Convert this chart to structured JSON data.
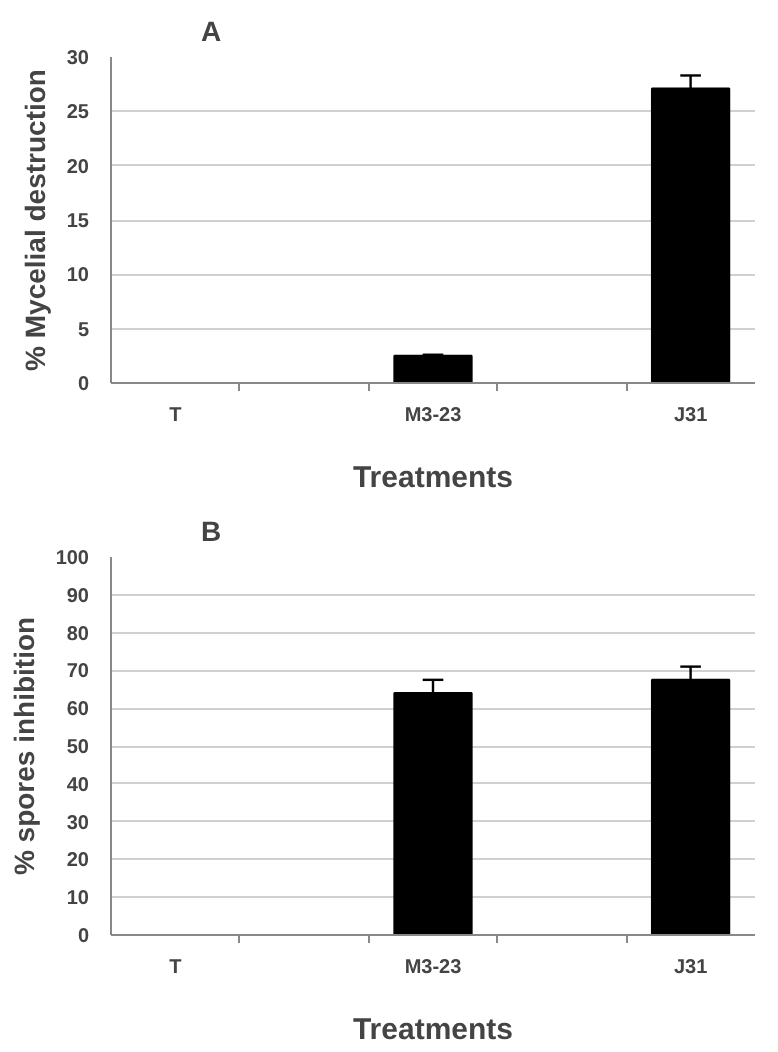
{
  "chart_data": [
    {
      "type": "bar",
      "title": "A",
      "xlabel": "Treatments",
      "ylabel": "% Mycelial destruction",
      "categories": [
        "T",
        null,
        "M3-23",
        null,
        "J31"
      ],
      "values": [
        0,
        null,
        2.5,
        null,
        27.1
      ],
      "errors": [
        null,
        null,
        0.1,
        null,
        1.2
      ],
      "color": "#000000",
      "ylim": [
        0,
        30
      ],
      "yticks": [
        0,
        5,
        10,
        15,
        20,
        25,
        30
      ],
      "grid": "y"
    },
    {
      "type": "bar",
      "title": "B",
      "xlabel": "Treatments",
      "ylabel": "% spores inhibition",
      "categories": [
        "T",
        null,
        "M3-23",
        null,
        "J31"
      ],
      "values": [
        0,
        null,
        64,
        null,
        67.5
      ],
      "errors": [
        null,
        null,
        3.5,
        null,
        3.5
      ],
      "color": "#000000",
      "ylim": [
        0,
        100
      ],
      "yticks": [
        0,
        10,
        20,
        30,
        40,
        50,
        60,
        70,
        80,
        90,
        100
      ],
      "grid": "y"
    }
  ]
}
